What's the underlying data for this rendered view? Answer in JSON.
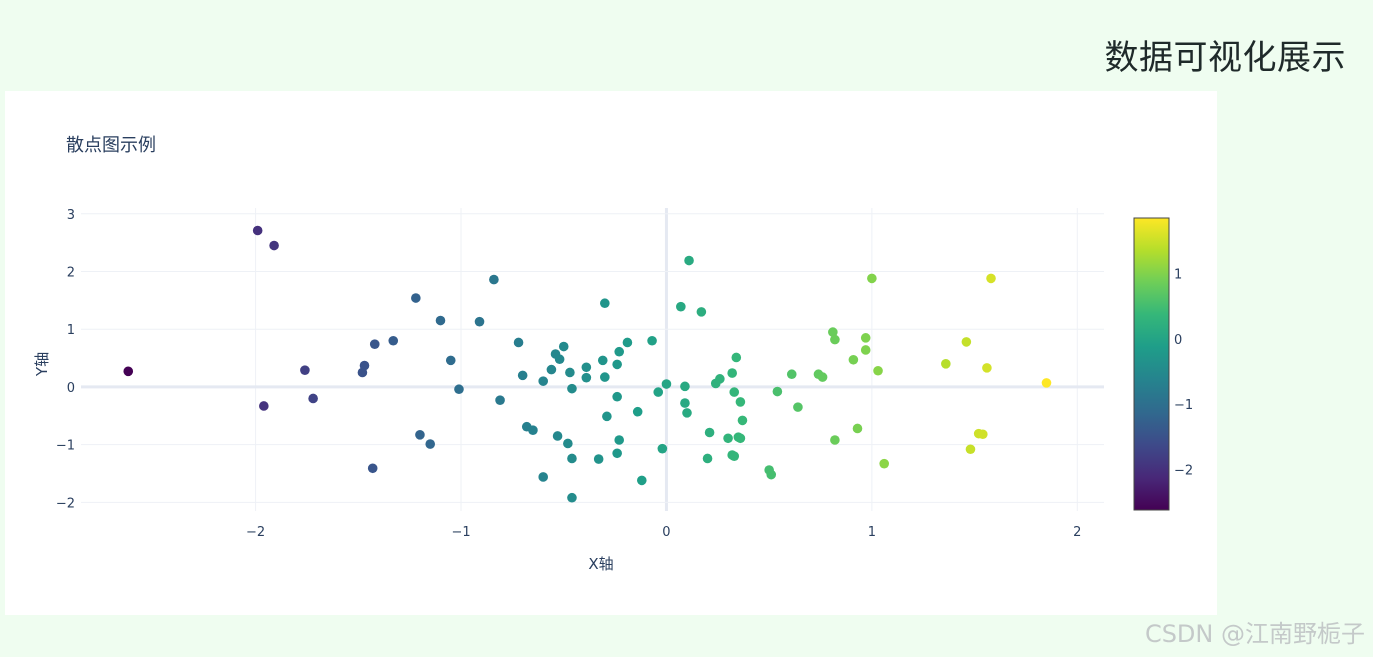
{
  "page": {
    "title": "数据可视化展示",
    "watermark": "CSDN @江南野栀子"
  },
  "chart_data": {
    "type": "scatter",
    "title": "散点图示例",
    "xlabel": "X轴",
    "ylabel": "Y轴",
    "xlim": [
      -2.85,
      2.13
    ],
    "ylim": [
      -2.15,
      3.1
    ],
    "xticks": [
      -2,
      -1,
      0,
      1,
      2
    ],
    "yticks": [
      -2,
      -1,
      0,
      1,
      2,
      3
    ],
    "xtick_labels": [
      "−2",
      "−1",
      "0",
      "1",
      "2"
    ],
    "ytick_labels": [
      "−2",
      "−1",
      "0",
      "1",
      "2",
      "3"
    ],
    "grid": true,
    "colorscale": "viridis",
    "color_by": "x",
    "colorbar": {
      "range": [
        -2.62,
        1.85
      ],
      "ticks": [
        -2,
        -1,
        0,
        1
      ],
      "tick_labels": [
        "−2",
        "−1",
        "0",
        "1"
      ]
    },
    "points": [
      {
        "x": -2.62,
        "y": 0.27
      },
      {
        "x": -1.99,
        "y": 2.71
      },
      {
        "x": -1.91,
        "y": 2.45
      },
      {
        "x": -1.96,
        "y": -0.33
      },
      {
        "x": -1.76,
        "y": 0.29
      },
      {
        "x": -1.72,
        "y": -0.2
      },
      {
        "x": -1.48,
        "y": 0.25
      },
      {
        "x": -1.47,
        "y": 0.37
      },
      {
        "x": -1.42,
        "y": 0.74
      },
      {
        "x": -1.43,
        "y": -1.41
      },
      {
        "x": -1.33,
        "y": 0.8
      },
      {
        "x": -1.22,
        "y": 1.54
      },
      {
        "x": -1.2,
        "y": -0.83
      },
      {
        "x": -1.15,
        "y": -0.99
      },
      {
        "x": -1.1,
        "y": 1.15
      },
      {
        "x": -1.05,
        "y": 0.46
      },
      {
        "x": -1.01,
        "y": -0.04
      },
      {
        "x": -0.91,
        "y": 1.13
      },
      {
        "x": -0.84,
        "y": 1.86
      },
      {
        "x": -0.81,
        "y": -0.23
      },
      {
        "x": -0.72,
        "y": 0.77
      },
      {
        "x": -0.7,
        "y": 0.2
      },
      {
        "x": -0.68,
        "y": -0.69
      },
      {
        "x": -0.65,
        "y": -0.75
      },
      {
        "x": -0.6,
        "y": 0.1
      },
      {
        "x": -0.6,
        "y": -1.56
      },
      {
        "x": -0.56,
        "y": 0.3
      },
      {
        "x": -0.54,
        "y": 0.57
      },
      {
        "x": -0.53,
        "y": -0.85
      },
      {
        "x": -0.52,
        "y": 0.48
      },
      {
        "x": -0.5,
        "y": 0.7
      },
      {
        "x": -0.48,
        "y": -0.98
      },
      {
        "x": -0.47,
        "y": 0.25
      },
      {
        "x": -0.46,
        "y": -0.03
      },
      {
        "x": -0.46,
        "y": -1.24
      },
      {
        "x": -0.46,
        "y": -1.92
      },
      {
        "x": -0.39,
        "y": 0.16
      },
      {
        "x": -0.39,
        "y": 0.34
      },
      {
        "x": -0.33,
        "y": -1.25
      },
      {
        "x": -0.31,
        "y": 0.46
      },
      {
        "x": -0.3,
        "y": 1.45
      },
      {
        "x": -0.3,
        "y": 0.17
      },
      {
        "x": -0.29,
        "y": -0.51
      },
      {
        "x": -0.24,
        "y": -0.17
      },
      {
        "x": -0.24,
        "y": -1.15
      },
      {
        "x": -0.24,
        "y": 0.39
      },
      {
        "x": -0.23,
        "y": 0.61
      },
      {
        "x": -0.23,
        "y": -0.92
      },
      {
        "x": -0.19,
        "y": 0.77
      },
      {
        "x": -0.14,
        "y": -0.43
      },
      {
        "x": -0.12,
        "y": -1.62
      },
      {
        "x": -0.07,
        "y": 0.8
      },
      {
        "x": -0.04,
        "y": -0.09
      },
      {
        "x": -0.02,
        "y": -1.07
      },
      {
        "x": 0.0,
        "y": 0.05
      },
      {
        "x": 0.07,
        "y": 1.39
      },
      {
        "x": 0.09,
        "y": 0.01
      },
      {
        "x": 0.09,
        "y": -0.28
      },
      {
        "x": 0.1,
        "y": -0.45
      },
      {
        "x": 0.11,
        "y": 2.19
      },
      {
        "x": 0.17,
        "y": 1.3
      },
      {
        "x": 0.2,
        "y": -1.24
      },
      {
        "x": 0.21,
        "y": -0.79
      },
      {
        "x": 0.24,
        "y": 0.06
      },
      {
        "x": 0.26,
        "y": 0.14
      },
      {
        "x": 0.3,
        "y": -0.89
      },
      {
        "x": 0.32,
        "y": -1.18
      },
      {
        "x": 0.32,
        "y": 0.24
      },
      {
        "x": 0.33,
        "y": -0.09
      },
      {
        "x": 0.33,
        "y": -1.2
      },
      {
        "x": 0.34,
        "y": 0.51
      },
      {
        "x": 0.35,
        "y": -0.87
      },
      {
        "x": 0.36,
        "y": -0.89
      },
      {
        "x": 0.36,
        "y": -0.26
      },
      {
        "x": 0.37,
        "y": -0.58
      },
      {
        "x": 0.5,
        "y": -1.44
      },
      {
        "x": 0.51,
        "y": -1.52
      },
      {
        "x": 0.54,
        "y": -0.08
      },
      {
        "x": 0.61,
        "y": 0.22
      },
      {
        "x": 0.64,
        "y": -0.35
      },
      {
        "x": 0.74,
        "y": 0.22
      },
      {
        "x": 0.76,
        "y": 0.17
      },
      {
        "x": 0.81,
        "y": 0.95
      },
      {
        "x": 0.82,
        "y": 0.82
      },
      {
        "x": 0.82,
        "y": -0.92
      },
      {
        "x": 0.91,
        "y": 0.47
      },
      {
        "x": 0.93,
        "y": -0.72
      },
      {
        "x": 0.97,
        "y": 0.85
      },
      {
        "x": 0.97,
        "y": 0.64
      },
      {
        "x": 1.0,
        "y": 1.88
      },
      {
        "x": 1.03,
        "y": 0.28
      },
      {
        "x": 1.06,
        "y": -1.33
      },
      {
        "x": 1.36,
        "y": 0.4
      },
      {
        "x": 1.46,
        "y": 0.78
      },
      {
        "x": 1.48,
        "y": -1.08
      },
      {
        "x": 1.52,
        "y": -0.81
      },
      {
        "x": 1.54,
        "y": -0.82
      },
      {
        "x": 1.56,
        "y": 0.33
      },
      {
        "x": 1.58,
        "y": 1.88
      },
      {
        "x": 1.85,
        "y": 0.07
      }
    ]
  }
}
